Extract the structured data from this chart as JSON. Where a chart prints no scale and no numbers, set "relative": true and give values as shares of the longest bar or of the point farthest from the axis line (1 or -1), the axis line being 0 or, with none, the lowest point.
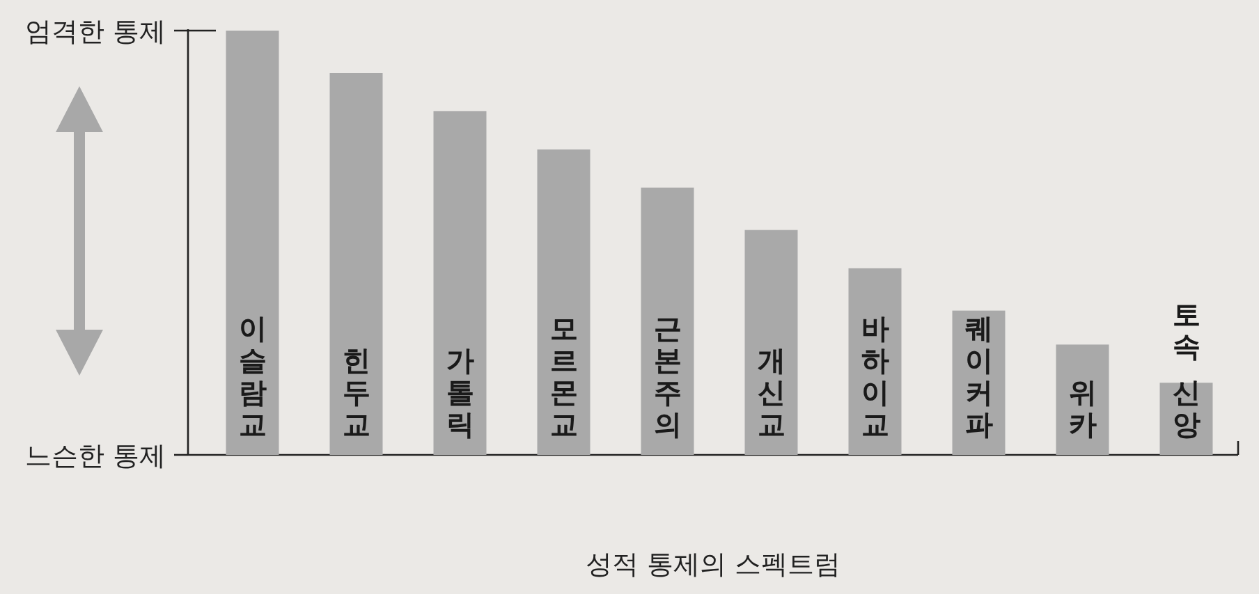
{
  "chart_data": {
    "type": "bar",
    "xlabel": "성적 통제의 스펙트럼",
    "categories": [
      "이슬람교",
      "힌두교",
      "가톨릭",
      "모르몬교",
      "근본주의",
      "개신교",
      "바하이교",
      "퀘이커파",
      "위카",
      "토속 신앙"
    ],
    "values": [
      1.0,
      0.9,
      0.81,
      0.72,
      0.63,
      0.53,
      0.44,
      0.34,
      0.26,
      0.17
    ],
    "color": "#a9a9a9",
    "relative": true,
    "annotations": [
      "엄격한 통제",
      "느슨한 통제"
    ]
  }
}
